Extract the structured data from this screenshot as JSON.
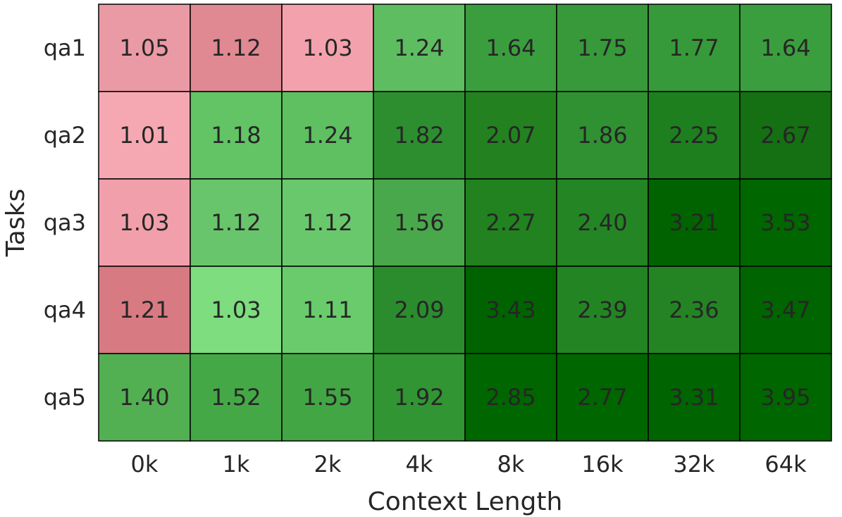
{
  "chart_data": {
    "type": "heatmap",
    "xlabel": "Context Length",
    "ylabel": "Tasks",
    "x_categories": [
      "0k",
      "1k",
      "2k",
      "4k",
      "8k",
      "16k",
      "32k",
      "64k"
    ],
    "y_categories": [
      "qa1",
      "qa2",
      "qa3",
      "qa4",
      "qa5"
    ],
    "values": [
      [
        1.05,
        1.12,
        1.03,
        1.24,
        1.64,
        1.75,
        1.77,
        1.64
      ],
      [
        1.01,
        1.18,
        1.24,
        1.82,
        2.07,
        1.86,
        2.25,
        2.67
      ],
      [
        1.03,
        1.12,
        1.12,
        1.56,
        2.27,
        2.4,
        3.21,
        3.53
      ],
      [
        1.21,
        1.03,
        1.11,
        2.09,
        3.43,
        2.39,
        2.36,
        3.47
      ],
      [
        1.4,
        1.52,
        1.55,
        1.92,
        2.85,
        2.77,
        3.31,
        3.95
      ]
    ],
    "labels": [
      [
        "1.05",
        "1.12",
        "1.03",
        "1.24",
        "1.64",
        "1.75",
        "1.77",
        "1.64"
      ],
      [
        "1.01",
        "1.18",
        "1.24",
        "1.82",
        "2.07",
        "1.86",
        "2.25",
        "2.67"
      ],
      [
        "1.03",
        "1.12",
        "1.12",
        "1.56",
        "2.27",
        "2.40",
        "3.21",
        "3.53"
      ],
      [
        "1.21",
        "1.03",
        "1.11",
        "2.09",
        "3.43",
        "2.39",
        "2.36",
        "3.47"
      ],
      [
        "1.40",
        "1.52",
        "1.55",
        "1.92",
        "2.85",
        "2.77",
        "3.31",
        "3.95"
      ]
    ],
    "cell_colors": [
      [
        "#ea9aa5",
        "#e08992",
        "#f3a2ad",
        "#5fbd61",
        "#3b9e3e",
        "#37993a",
        "#379a3a",
        "#3b9e3e"
      ],
      [
        "#f6a8b2",
        "#62c465",
        "#5ec061",
        "#2d8e30",
        "#23821f",
        "#2f9132",
        "#1e7f1e",
        "#156f13"
      ],
      [
        "#f1a0ab",
        "#69c56b",
        "#6ac86c",
        "#49a84b",
        "#22821f",
        "#248524",
        "#006300",
        "#006600"
      ],
      [
        "#d77a82",
        "#7ddd7f",
        "#6acb6c",
        "#2b8c2e",
        "#006300",
        "#238423",
        "#248424",
        "#006400"
      ],
      [
        "#52b053",
        "#45a847",
        "#42a644",
        "#309532",
        "#006600",
        "#006600",
        "#006400",
        "#006600"
      ]
    ],
    "grid": true,
    "legend": "none"
  }
}
